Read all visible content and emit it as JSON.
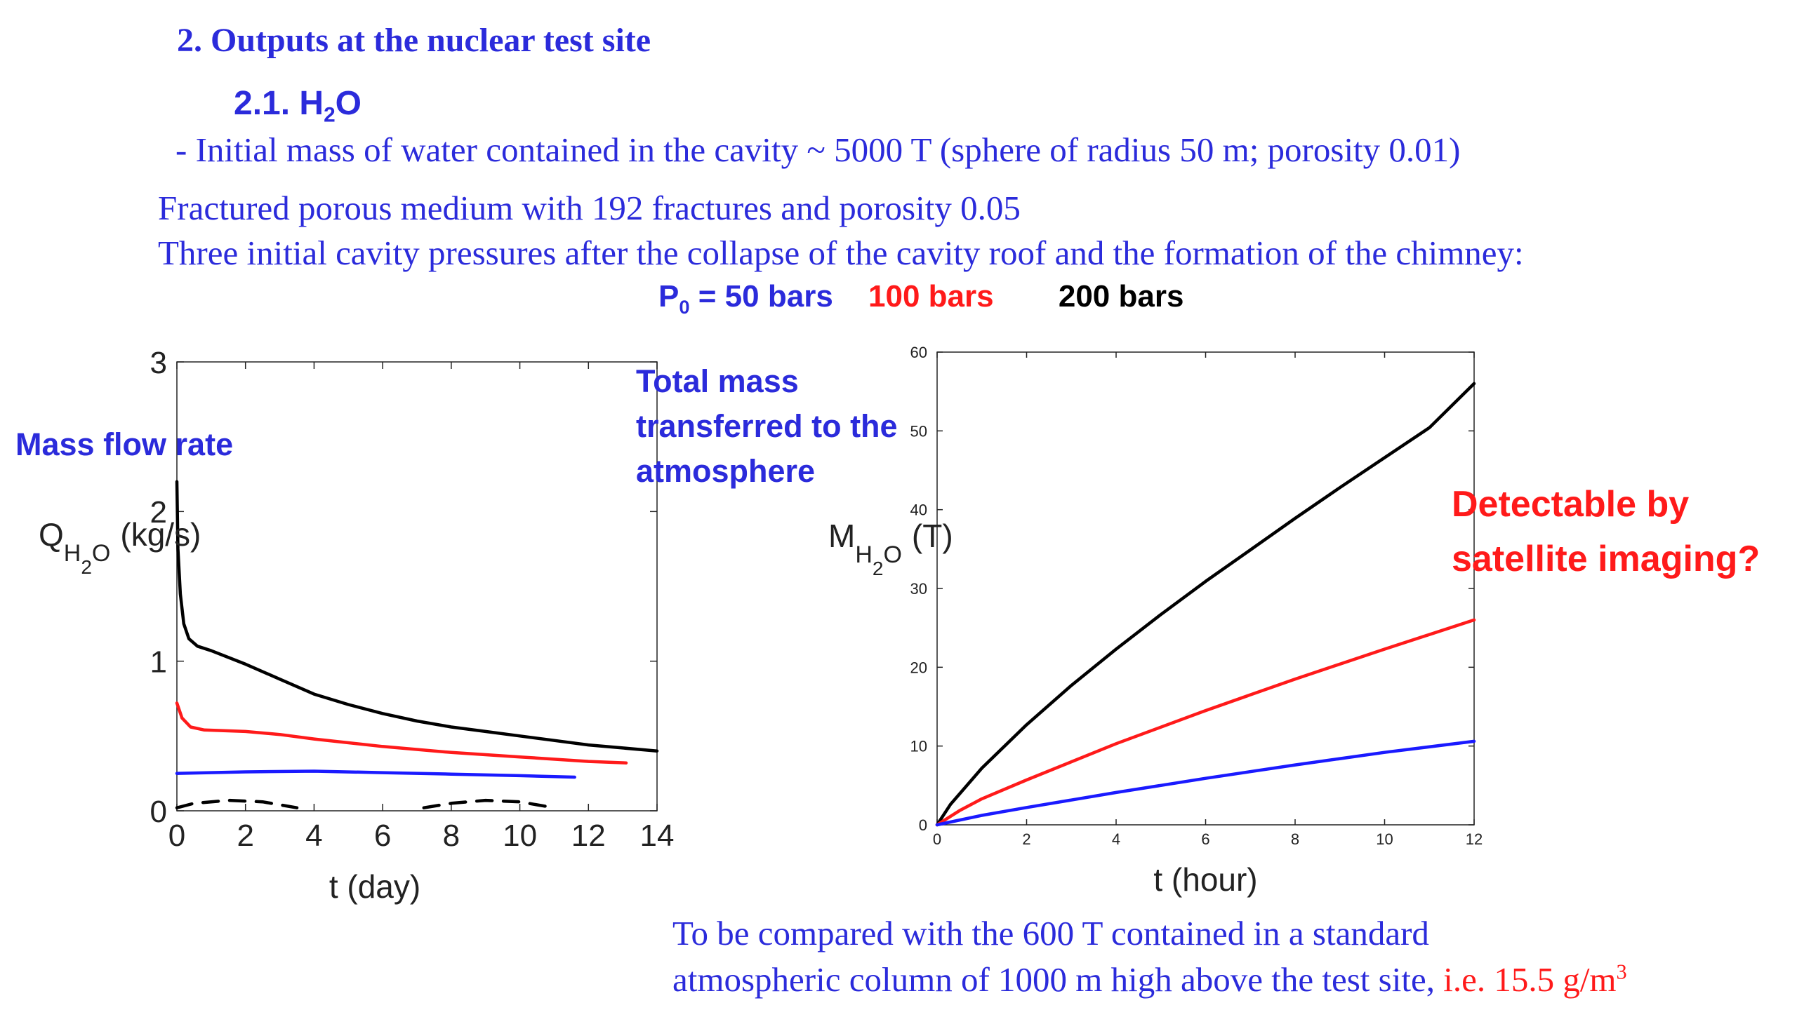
{
  "heading": "2. Outputs at the nuclear test site",
  "subheading": {
    "prefix": "2.1. H",
    "sub": "2",
    "suffix": "O"
  },
  "text_lines": [
    "- Initial mass of water contained in the cavity ~ 5000 T (sphere of radius 50 m; porosity 0.01)",
    "Fractured porous medium with 192 fractures and porosity 0.05",
    "Three initial cavity pressures after the collapse of the cavity roof and the formation of the chimney:"
  ],
  "pressures": {
    "p0_prefix": "P",
    "p0_sub": "0",
    "p50": " = 50 bars",
    "p100": "100 bars",
    "p200": "200 bars"
  },
  "callouts": {
    "mass_flow": "Mass flow rate",
    "total_mass": "Total mass transferred to the atmosphere",
    "detectable": "Detectable by satellite imaging?"
  },
  "bottom_text": {
    "line1": "To be compared with the 600 T contained in a standard",
    "line2_blue": "atmospheric column of 1000 m high above the test site, ",
    "line2_red": "i.e. 15.5 g/m",
    "line2_sup": "3"
  },
  "colors": {
    "blue": "#2b2bdb",
    "red": "#ff1a1a",
    "black": "#000000",
    "series_blue": "#1a1aff",
    "series_red": "#ff1a1a"
  },
  "chart_data": [
    {
      "type": "line",
      "title": "",
      "xlabel": "t (day)",
      "ylabel": "Q_H2O (kg/s)",
      "ylabel_parts": {
        "main": "Q",
        "sub": "H",
        "subsub": "2",
        "sub2": "O",
        "unit": "(kg/s)"
      },
      "xlim": [
        0,
        14
      ],
      "ylim": [
        0,
        3
      ],
      "xticks": [
        0,
        2,
        4,
        6,
        8,
        10,
        12,
        14
      ],
      "yticks": [
        0,
        1,
        2,
        3
      ],
      "series": [
        {
          "color": "black",
          "points": [
            [
              0,
              2.2
            ],
            [
              0.03,
              1.75
            ],
            [
              0.1,
              1.45
            ],
            [
              0.2,
              1.25
            ],
            [
              0.35,
              1.15
            ],
            [
              0.6,
              1.1
            ],
            [
              1,
              1.07
            ],
            [
              2,
              0.98
            ],
            [
              3,
              0.88
            ],
            [
              4,
              0.78
            ],
            [
              5,
              0.71
            ],
            [
              6,
              0.65
            ],
            [
              7,
              0.6
            ],
            [
              8,
              0.56
            ],
            [
              9,
              0.53
            ],
            [
              10,
              0.5
            ],
            [
              11,
              0.47
            ],
            [
              12,
              0.44
            ],
            [
              13,
              0.42
            ],
            [
              14,
              0.4
            ]
          ]
        },
        {
          "color": "red",
          "points": [
            [
              0,
              0.72
            ],
            [
              0.15,
              0.62
            ],
            [
              0.4,
              0.56
            ],
            [
              0.8,
              0.54
            ],
            [
              2,
              0.53
            ],
            [
              3,
              0.51
            ],
            [
              4,
              0.48
            ],
            [
              6,
              0.43
            ],
            [
              8,
              0.39
            ],
            [
              10,
              0.36
            ],
            [
              12,
              0.33
            ],
            [
              13.1,
              0.32
            ]
          ]
        },
        {
          "color": "blue",
          "points": [
            [
              0,
              0.25
            ],
            [
              2,
              0.26
            ],
            [
              4,
              0.265
            ],
            [
              6,
              0.255
            ],
            [
              8,
              0.245
            ],
            [
              10,
              0.235
            ],
            [
              11.6,
              0.225
            ]
          ]
        },
        {
          "color": "black",
          "dashed": true,
          "points": [
            [
              0,
              0.02
            ],
            [
              0.5,
              0.05
            ],
            [
              1.5,
              0.07
            ],
            [
              2.5,
              0.06
            ],
            [
              3.5,
              0.02
            ]
          ]
        },
        {
          "color": "black",
          "dashed": true,
          "points": [
            [
              7.2,
              0.02
            ],
            [
              8,
              0.05
            ],
            [
              9,
              0.07
            ],
            [
              10,
              0.06
            ],
            [
              11,
              0.02
            ]
          ]
        }
      ]
    },
    {
      "type": "line",
      "title": "",
      "xlabel": "t (hour)",
      "ylabel": "M_H2O (T)",
      "ylabel_parts": {
        "main": "M",
        "sub": "H",
        "subsub": "2",
        "sub2": "O",
        "unit": "(T)"
      },
      "xlim": [
        0,
        12
      ],
      "ylim": [
        0,
        60
      ],
      "xticks": [
        0,
        2,
        4,
        6,
        8,
        10,
        12
      ],
      "yticks": [
        0,
        10,
        20,
        30,
        40,
        50,
        60
      ],
      "series": [
        {
          "color": "black",
          "points": [
            [
              0,
              0
            ],
            [
              0.3,
              2.6
            ],
            [
              1,
              7.2
            ],
            [
              2,
              12.7
            ],
            [
              3,
              17.7
            ],
            [
              4,
              22.3
            ],
            [
              5,
              26.7
            ],
            [
              6,
              30.9
            ],
            [
              7,
              34.9
            ],
            [
              8,
              38.9
            ],
            [
              9,
              42.8
            ],
            [
              10,
              46.6
            ],
            [
              11,
              50.4
            ],
            [
              12,
              56
            ]
          ]
        },
        {
          "color": "red",
          "points": [
            [
              0,
              0
            ],
            [
              0.5,
              1.8
            ],
            [
              1,
              3.3
            ],
            [
              2,
              5.7
            ],
            [
              4,
              10.3
            ],
            [
              6,
              14.5
            ],
            [
              8,
              18.5
            ],
            [
              10,
              22.3
            ],
            [
              12,
              26
            ]
          ]
        },
        {
          "color": "blue",
          "points": [
            [
              0,
              0
            ],
            [
              1,
              1.2
            ],
            [
              2,
              2.2
            ],
            [
              4,
              4.1
            ],
            [
              6,
              5.9
            ],
            [
              8,
              7.6
            ],
            [
              10,
              9.2
            ],
            [
              12,
              10.6
            ]
          ]
        }
      ]
    }
  ]
}
